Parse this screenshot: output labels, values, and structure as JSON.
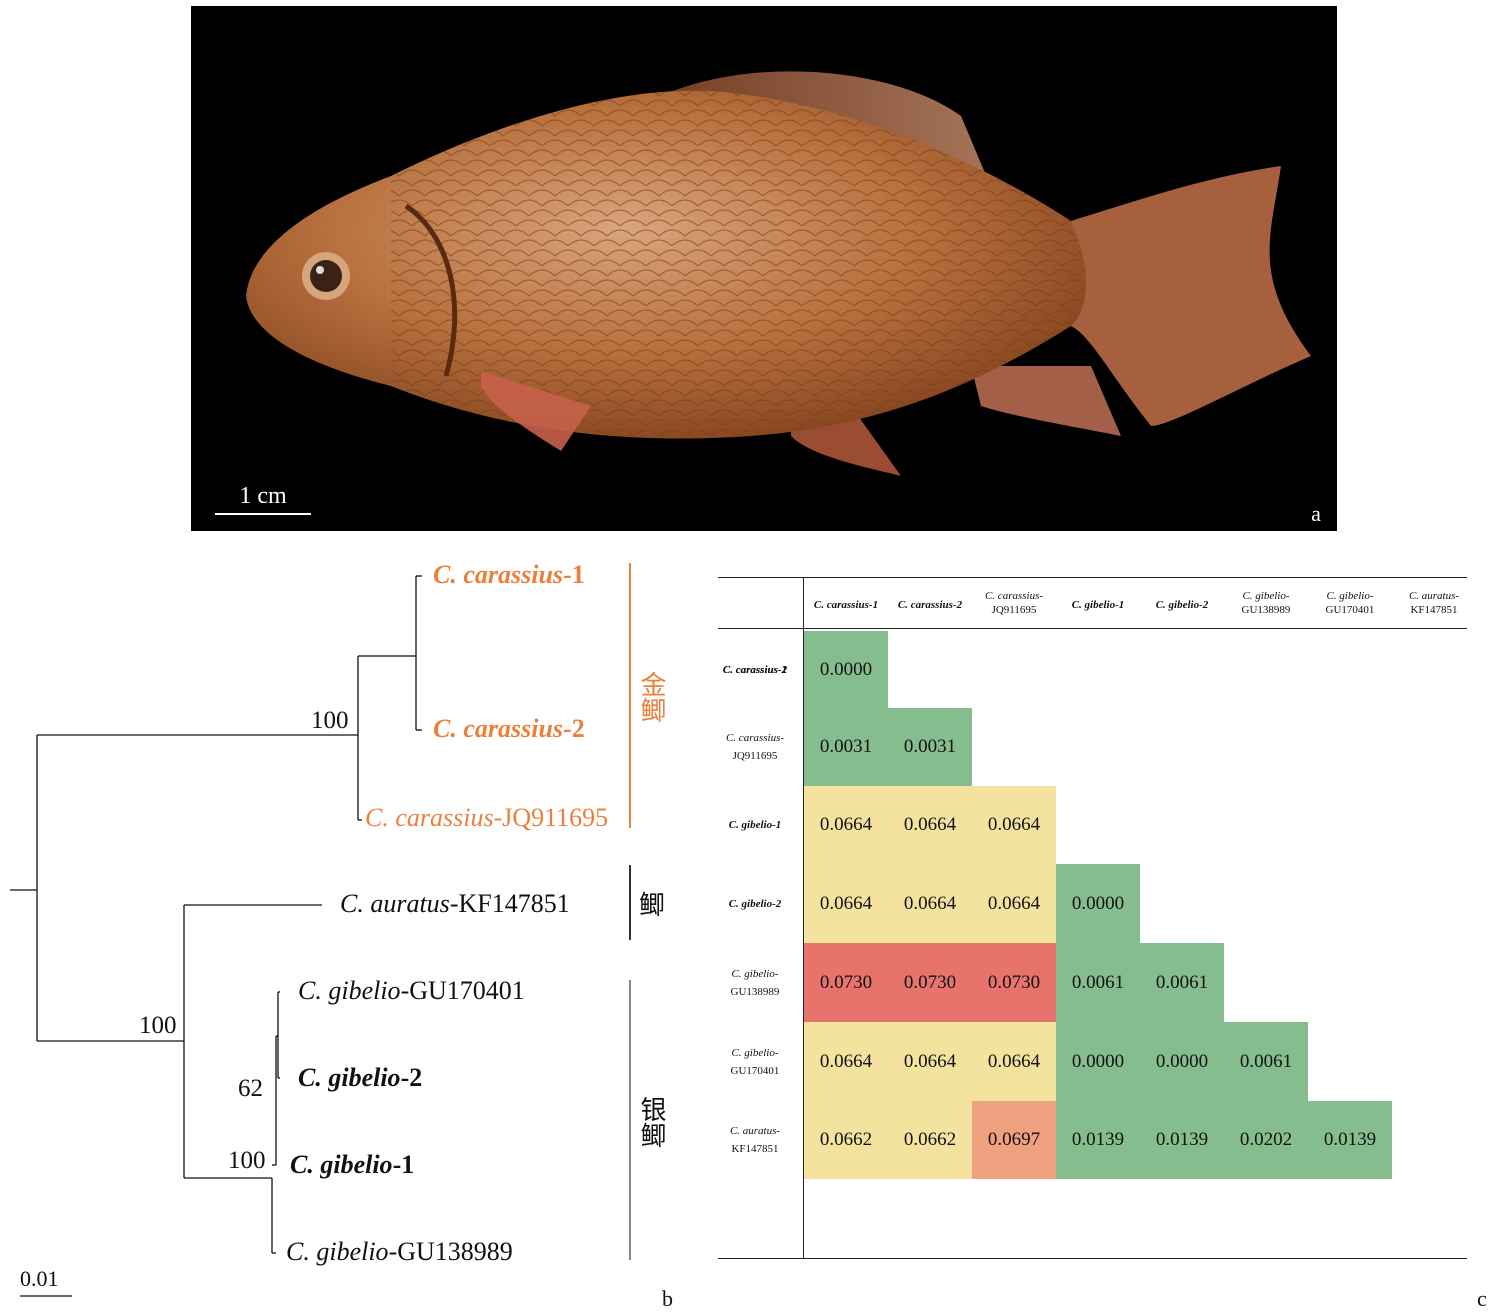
{
  "photo": {
    "scale_label": "1 cm",
    "panel_letter": "a"
  },
  "tree": {
    "taxa": [
      {
        "label_a": "C. carassius",
        "label_b": "-1",
        "group": "jin"
      },
      {
        "label_a": "C. carassius",
        "label_b": "-2",
        "group": "jin"
      },
      {
        "label_a": "C. carassius",
        "label_b": "-JQ911695",
        "group": "jin"
      },
      {
        "label_a": "C. auratus",
        "label_b": "-KF147851",
        "group": "ji"
      },
      {
        "label_a": "C. gibelio",
        "label_b": "-GU170401",
        "group": "yin"
      },
      {
        "label_a": "C. gibelio",
        "label_b": "-2",
        "group": "yin"
      },
      {
        "label_a": "C. gibelio",
        "label_b": "-1",
        "group": "yin"
      },
      {
        "label_a": "C. gibelio",
        "label_b": "-GU138989",
        "group": "yin"
      }
    ],
    "bootstrap": [
      "100",
      "100",
      "62",
      "100"
    ],
    "groups": {
      "jin": "金鲫",
      "ji": "鲫",
      "yin": "银鲫"
    },
    "scale_bar": "0.01",
    "panel_letter": "b",
    "colors": {
      "highlight": "#e9813c"
    }
  },
  "matrix": {
    "col_headers": [
      [
        "C. carassius-1"
      ],
      [
        "C. carassius-2"
      ],
      [
        "C. carassius-",
        "JQ911695"
      ],
      [
        "C. gibelio-1"
      ],
      [
        "C. gibelio-2"
      ],
      [
        "C. gibelio-",
        "GU138989"
      ],
      [
        "C. gibelio-",
        "GU170401"
      ],
      [
        "C. auratus-",
        "KF147851"
      ]
    ],
    "row_headers": [
      [
        "C. carassius-1"
      ],
      [
        "C. carassius-2"
      ],
      [
        "C. carassius-",
        "JQ911695"
      ],
      [
        "C. gibelio-1"
      ],
      [
        "C. gibelio-2"
      ],
      [
        "C. gibelio-",
        "GU138989"
      ],
      [
        "C. gibelio-",
        "GU170401"
      ],
      [
        "C. auratus-",
        "KF147851"
      ]
    ],
    "values": [
      [],
      [
        "0.0000"
      ],
      [
        "0.0031",
        "0.0031"
      ],
      [
        "0.0664",
        "0.0664",
        "0.0664"
      ],
      [
        "0.0664",
        "0.0664",
        "0.0664",
        "0.0000"
      ],
      [
        "0.0730",
        "0.0730",
        "0.0730",
        "0.0061",
        "0.0061"
      ],
      [
        "0.0664",
        "0.0664",
        "0.0664",
        "0.0000",
        "0.0000",
        "0.0061"
      ],
      [
        "0.0662",
        "0.0662",
        "0.0697",
        "0.0139",
        "0.0139",
        "0.0202",
        "0.0139"
      ]
    ],
    "colors": {
      "green": "#86bd8e",
      "yellow": "#f3e39e",
      "red": "#e8736d",
      "salmon": "#efa07e"
    },
    "panel_letter": "c"
  }
}
